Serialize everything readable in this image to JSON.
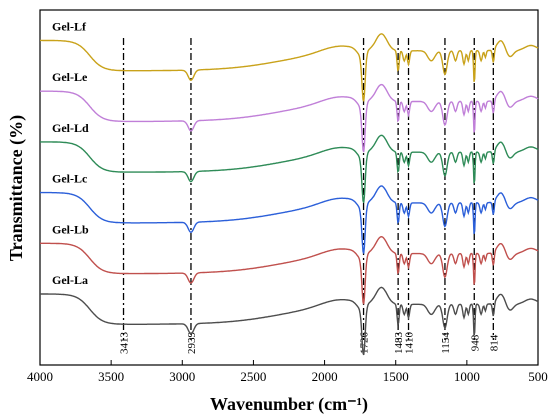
{
  "chart_data": {
    "type": "line",
    "xlabel": "Wavenumber (cm⁻¹)",
    "ylabel": "Transmittance (%)",
    "xlim": [
      4000,
      500
    ],
    "x_reversed": true,
    "x_ticks": [
      4000,
      3500,
      3000,
      2500,
      2000,
      1500,
      1000,
      500
    ],
    "y_ticks_shown": false,
    "y_units": "arbitrary offset transmittance",
    "peak_markers": [
      {
        "label": "3413",
        "x": 3413
      },
      {
        "label": "2939",
        "x": 2939
      },
      {
        "label": "1726",
        "x": 1726
      },
      {
        "label": "1483",
        "x": 1483
      },
      {
        "label": "1410",
        "x": 1410
      },
      {
        "label": "1154",
        "x": 1154
      },
      {
        "label": "948",
        "x": 948
      },
      {
        "label": "814",
        "x": 814
      }
    ],
    "series": [
      {
        "name": "Gel-Lf",
        "color": "#c9a21a",
        "baseline": 96
      },
      {
        "name": "Gel-Le",
        "color": "#c07fd8",
        "baseline": 81
      },
      {
        "name": "Gel-Ld",
        "color": "#2e8b57",
        "baseline": 66
      },
      {
        "name": "Gel-Lc",
        "color": "#2b5fd9",
        "baseline": 51
      },
      {
        "name": "Gel-Lb",
        "color": "#c0504d",
        "baseline": 36
      },
      {
        "name": "Gel-La",
        "color": "#4d4d4d",
        "baseline": 21
      }
    ]
  }
}
